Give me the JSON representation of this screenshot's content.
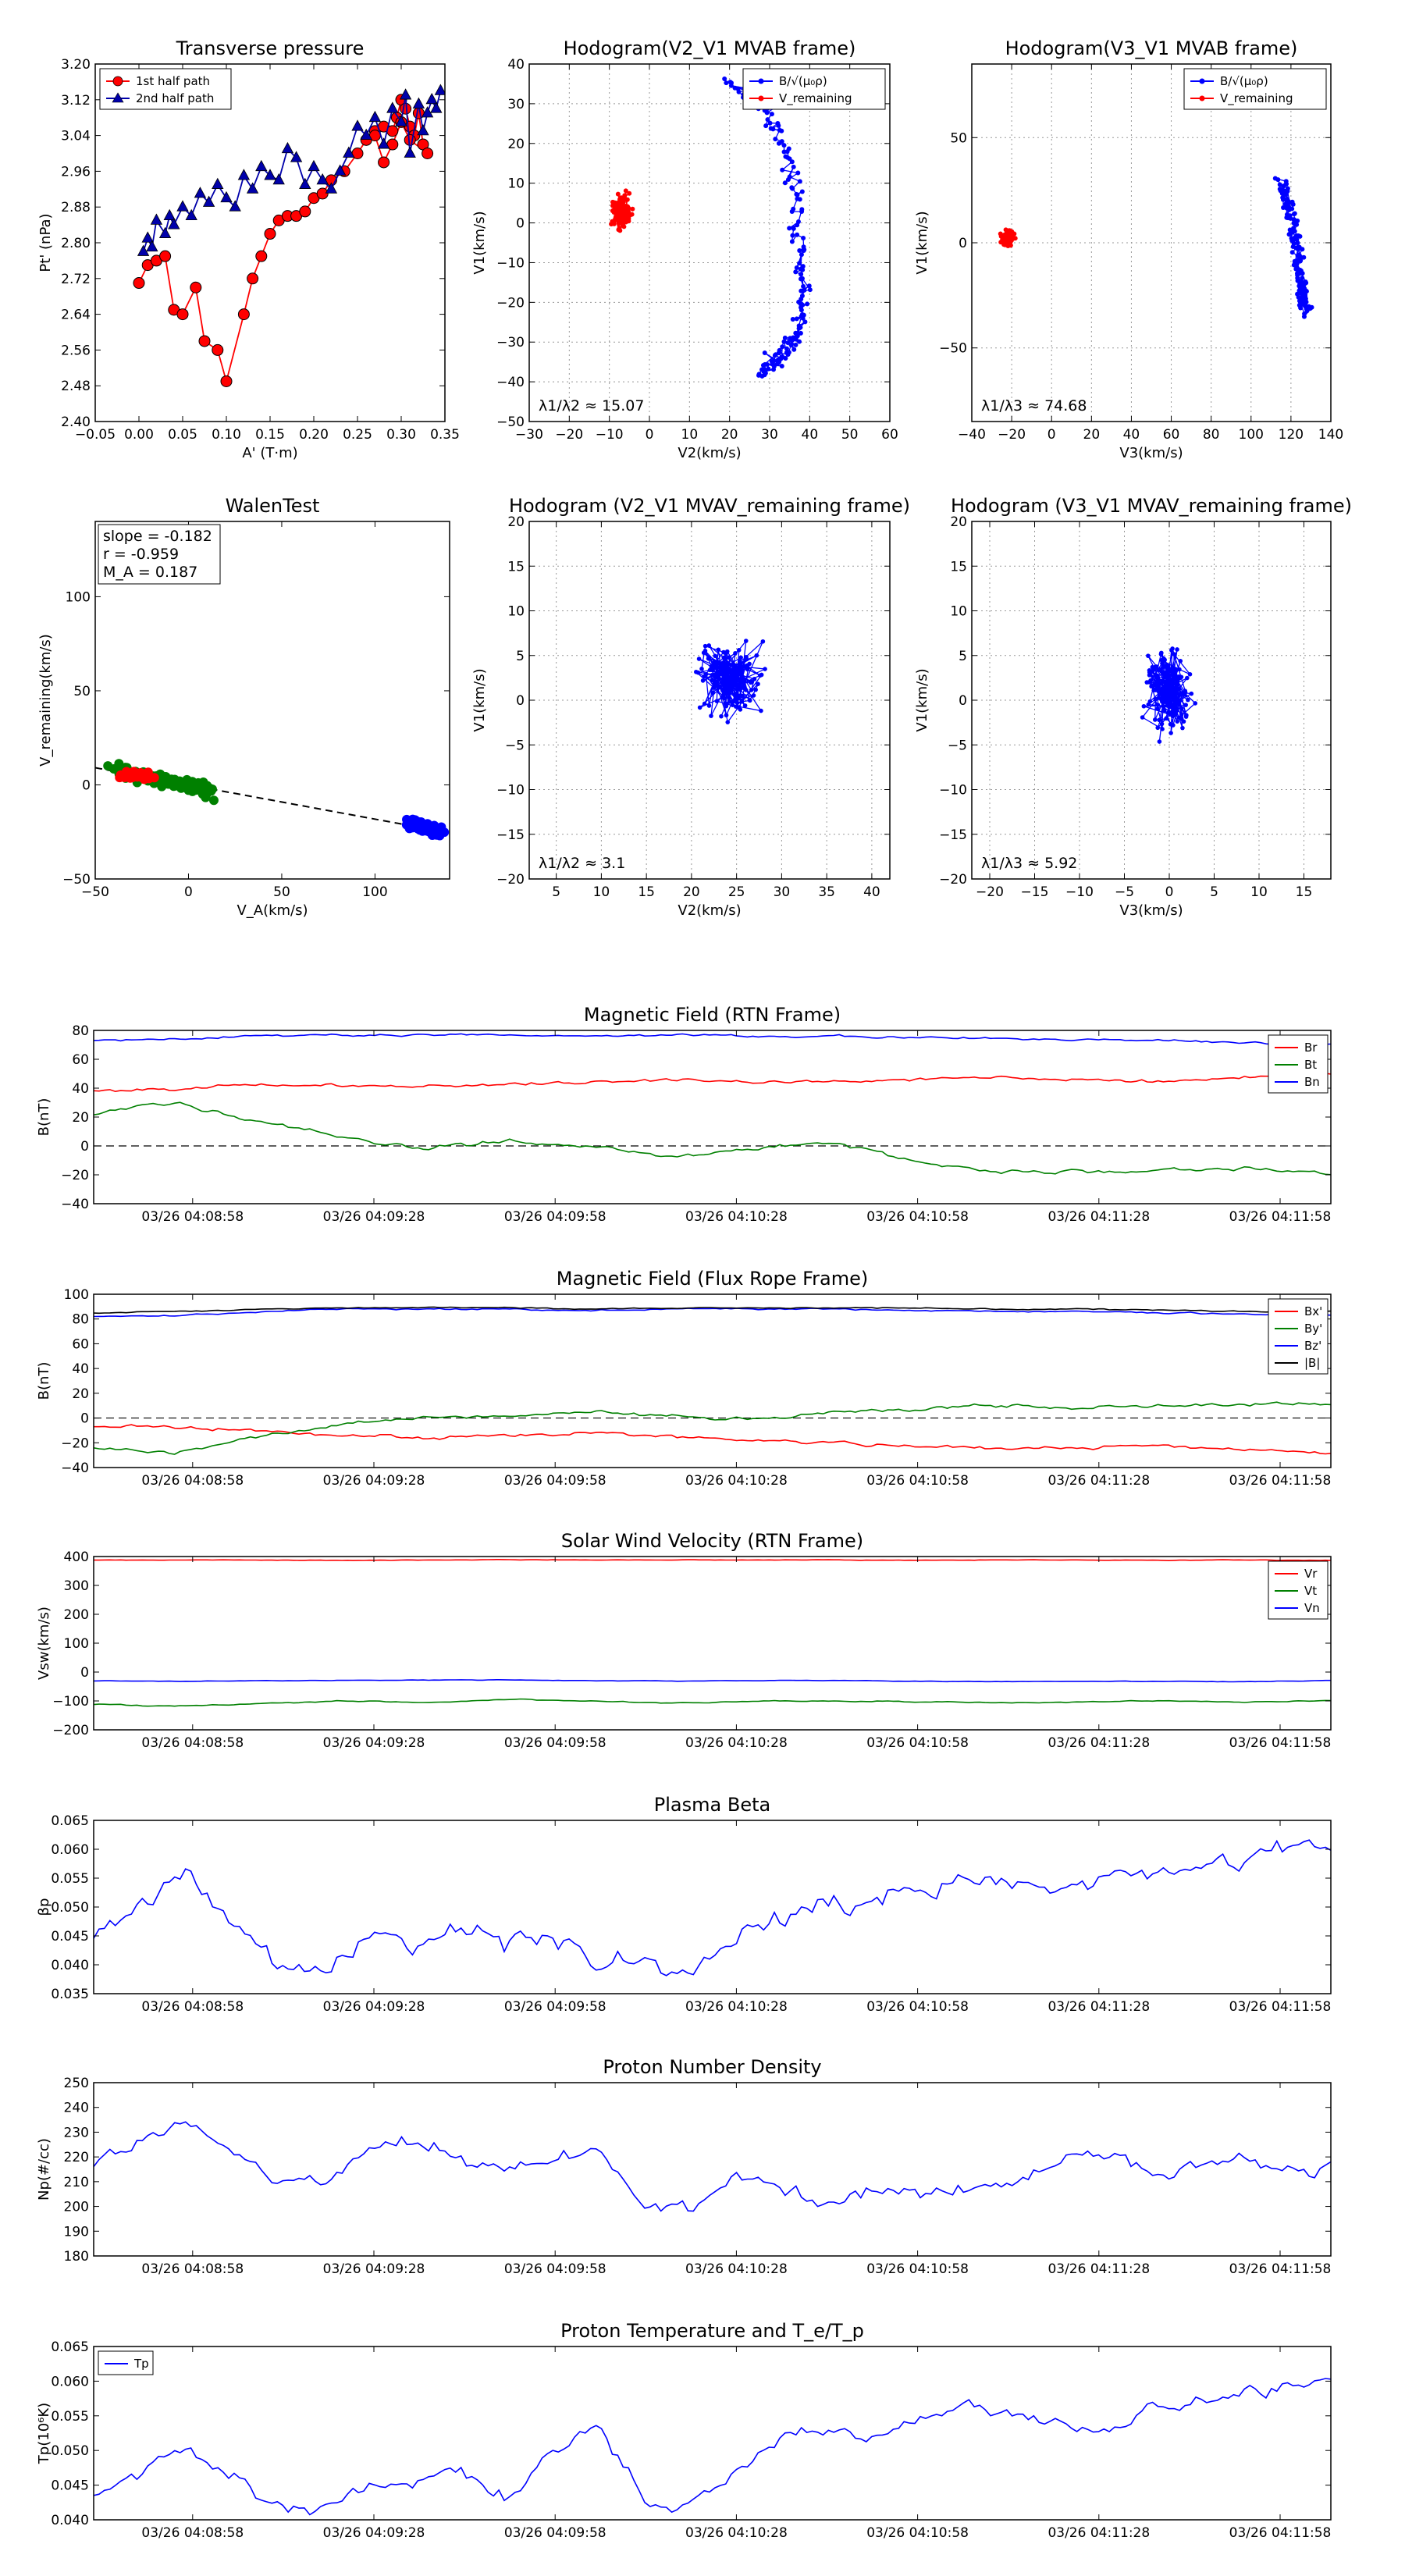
{
  "chart_data": [
    {
      "id": "tp",
      "type": "scatter",
      "title": "Transverse pressure",
      "xlabel": "A' (T·m)",
      "ylabel": "Pt' (nPa)",
      "xlim": [
        -0.05,
        0.35
      ],
      "ylim": [
        2.4,
        3.2
      ],
      "xticks": [
        "−0.05",
        "0.00",
        "0.05",
        "0.10",
        "0.15",
        "0.20",
        "0.25",
        "0.30",
        "0.35"
      ],
      "yticks": [
        "2.40",
        "2.48",
        "2.56",
        "2.64",
        "2.72",
        "2.80",
        "2.88",
        "2.96",
        "3.04",
        "3.12",
        "3.20"
      ],
      "legend": {
        "position": "top-left",
        "entries": [
          "1st half path",
          "2nd half path"
        ]
      },
      "series": [
        {
          "name": "1st half path",
          "color": "#ff0000",
          "marker": "circle",
          "x": [
            0.0,
            0.01,
            0.02,
            0.03,
            0.04,
            0.05,
            0.065,
            0.075,
            0.09,
            0.1,
            0.12,
            0.13,
            0.14,
            0.15,
            0.16,
            0.17,
            0.18,
            0.19,
            0.2,
            0.21,
            0.22,
            0.235,
            0.25,
            0.26,
            0.27,
            0.28,
            0.29,
            0.295,
            0.3,
            0.305,
            0.31,
            0.315,
            0.32,
            0.325,
            0.33,
            0.31,
            0.3,
            0.29,
            0.28,
            0.27
          ],
          "y": [
            2.71,
            2.75,
            2.76,
            2.77,
            2.65,
            2.64,
            2.7,
            2.58,
            2.56,
            2.49,
            2.64,
            2.72,
            2.77,
            2.82,
            2.85,
            2.86,
            2.86,
            2.87,
            2.9,
            2.91,
            2.94,
            2.96,
            3.0,
            3.03,
            3.05,
            3.06,
            3.05,
            3.08,
            3.12,
            3.1,
            3.06,
            3.04,
            3.09,
            3.02,
            3.0,
            3.03,
            3.07,
            3.02,
            2.98,
            3.04
          ]
        },
        {
          "name": "2nd half path",
          "color": "#0000aa",
          "marker": "triangle",
          "x": [
            0.005,
            0.01,
            0.015,
            0.02,
            0.03,
            0.035,
            0.04,
            0.05,
            0.06,
            0.07,
            0.08,
            0.09,
            0.1,
            0.11,
            0.12,
            0.13,
            0.14,
            0.15,
            0.16,
            0.17,
            0.18,
            0.19,
            0.2,
            0.21,
            0.22,
            0.23,
            0.24,
            0.25,
            0.26,
            0.27,
            0.28,
            0.29,
            0.3,
            0.305,
            0.31,
            0.32,
            0.325,
            0.33,
            0.335,
            0.34,
            0.345
          ],
          "y": [
            2.78,
            2.81,
            2.79,
            2.85,
            2.82,
            2.86,
            2.84,
            2.88,
            2.86,
            2.91,
            2.89,
            2.93,
            2.9,
            2.88,
            2.95,
            2.92,
            2.97,
            2.95,
            2.94,
            3.01,
            2.99,
            2.93,
            2.97,
            2.94,
            2.92,
            2.96,
            3.0,
            3.06,
            3.04,
            3.08,
            3.02,
            3.1,
            3.07,
            3.13,
            3.0,
            3.11,
            3.05,
            3.09,
            3.12,
            3.1,
            3.14
          ]
        }
      ]
    },
    {
      "id": "h1",
      "type": "scatter",
      "title": "Hodogram(V2_V1 MVAB frame)",
      "xlabel": "V2(km/s)",
      "ylabel": "V1(km/s)",
      "xlim": [
        -30,
        60
      ],
      "ylim": [
        -50,
        40
      ],
      "xticks": [
        "−30",
        "−20",
        "−10",
        "0",
        "10",
        "20",
        "30",
        "40",
        "50",
        "60"
      ],
      "yticks": [
        "−50",
        "−40",
        "−30",
        "−20",
        "−10",
        "0",
        "10",
        "20",
        "30",
        "40"
      ],
      "legend": {
        "position": "top-right",
        "entries": [
          "B/√(μ₀ρ)",
          "V_remaining"
        ]
      },
      "annotation": "λ1/λ2 ≈ 15.07",
      "clouds": [
        {
          "name": "B",
          "color": "#0000ff",
          "cx": [
            20,
            30,
            36,
            38,
            38,
            33,
            28
          ],
          "cy": [
            36,
            28,
            10,
            -12,
            -26,
            -33,
            -38
          ],
          "spread": [
            3,
            3
          ]
        },
        {
          "name": "V",
          "color": "#ff0000",
          "cx": [
            -7
          ],
          "cy": [
            3
          ],
          "spread": [
            3.5,
            6
          ]
        }
      ]
    },
    {
      "id": "h2",
      "type": "scatter",
      "title": "Hodogram(V3_V1 MVAB frame)",
      "xlabel": "V3(km/s)",
      "ylabel": "V1(km/s)",
      "xlim": [
        -40,
        140
      ],
      "ylim": [
        -85,
        85
      ],
      "xticks": [
        "−40",
        "−20",
        "0",
        "20",
        "40",
        "60",
        "80",
        "100",
        "120",
        "140"
      ],
      "yticks": [
        "−50",
        "0",
        "50"
      ],
      "legend": {
        "position": "top-right",
        "entries": [
          "B/√(μ₀ρ)",
          "V_remaining"
        ]
      },
      "annotation": "λ1/λ3 ≈ 74.68",
      "clouds": [
        {
          "name": "B",
          "color": "#0000ff",
          "cx": [
            115,
            122,
            125,
            127
          ],
          "cy": [
            30,
            5,
            -20,
            -32
          ],
          "spread": [
            4,
            5
          ]
        },
        {
          "name": "V",
          "color": "#ff0000",
          "cx": [
            -22
          ],
          "cy": [
            2
          ],
          "spread": [
            4,
            5
          ]
        }
      ]
    },
    {
      "id": "walen",
      "type": "scatter",
      "title": "WalenTest",
      "xlabel": "V_A(km/s)",
      "ylabel": "V_remaining(km/s)",
      "xlim": [
        -50,
        140
      ],
      "ylim": [
        -50,
        140
      ],
      "xticks": [
        "−50",
        "0",
        "50",
        "100"
      ],
      "yticks": [
        "−50",
        "0",
        "50",
        "100"
      ],
      "text": [
        "slope = -0.182",
        "r = -0.959",
        "M_A = 0.187"
      ],
      "fit_line": {
        "x": [
          -50,
          140
        ],
        "slope": -0.182
      },
      "clouds": [
        {
          "name": "green",
          "color": "#008000",
          "cx": [
            -40,
            -20,
            0,
            12
          ],
          "cy": [
            8,
            4,
            0,
            -4
          ],
          "spread": [
            6,
            5
          ]
        },
        {
          "name": "red",
          "color": "#ff0000",
          "cx": [
            -35,
            -22
          ],
          "cy": [
            6,
            4
          ],
          "spread": [
            6,
            3
          ]
        },
        {
          "name": "blue",
          "color": "#0000ff",
          "cx": [
            118,
            128,
            134
          ],
          "cy": [
            -20,
            -23,
            -25
          ],
          "spread": [
            5,
            4
          ]
        }
      ]
    },
    {
      "id": "h3",
      "type": "line",
      "title": "Hodogram (V2_V1 MVAV_remaining frame)",
      "xlabel": "V2(km/s)",
      "ylabel": "V1(km/s)",
      "xlim": [
        2,
        42
      ],
      "ylim": [
        -20,
        20
      ],
      "xticks": [
        "5",
        "10",
        "15",
        "20",
        "25",
        "30",
        "35",
        "40"
      ],
      "yticks": [
        "−20",
        "−15",
        "−10",
        "−5",
        "0",
        "5",
        "10",
        "15",
        "20"
      ],
      "annotation": "λ1/λ2 ≈ 3.1",
      "center": [
        24,
        2
      ],
      "spread": [
        4,
        6
      ]
    },
    {
      "id": "h4",
      "type": "line",
      "title": "Hodogram (V3_V1 MVAV_remaining frame)",
      "xlabel": "V3(km/s)",
      "ylabel": "V1(km/s)",
      "xlim": [
        -22,
        18
      ],
      "ylim": [
        -20,
        20
      ],
      "xticks": [
        "−20",
        "−15",
        "−10",
        "−5",
        "0",
        "5",
        "10",
        "15"
      ],
      "yticks": [
        "−20",
        "−15",
        "−10",
        "−5",
        "0",
        "5",
        "10",
        "15",
        "20"
      ],
      "annotation": "λ1/λ3 ≈ 5.92",
      "center": [
        0,
        1
      ],
      "spread": [
        3,
        6
      ]
    },
    {
      "id": "bfield",
      "type": "line",
      "title": "Magnetic Field (RTN Frame)",
      "ylabel": "B(nT)",
      "ylim": [
        -40,
        80
      ],
      "yticks": [
        "−40",
        "−20",
        "0",
        "20",
        "40",
        "60",
        "80"
      ],
      "xticks": [
        "03/26 04:08:58",
        "03/26 04:09:28",
        "03/26 04:09:58",
        "03/26 04:10:28",
        "03/26 04:10:58",
        "03/26 04:11:28",
        "03/26 04:11:58"
      ],
      "zero_line": true,
      "legend": {
        "position": "top-right",
        "entries": [
          "Br",
          "Bt",
          "Bn"
        ]
      },
      "series": [
        {
          "name": "Br",
          "color": "#ff0000",
          "keys": [
            38,
            40,
            42,
            42,
            41,
            43,
            44,
            46,
            44,
            45,
            46,
            48,
            46,
            44,
            48,
            50
          ],
          "noise": 1.5
        },
        {
          "name": "Bt",
          "color": "#008000",
          "keys": [
            22,
            30,
            18,
            5,
            -2,
            4,
            0,
            -8,
            -2,
            3,
            -12,
            -18,
            -18,
            -16,
            -15,
            -20
          ],
          "noise": 2
        },
        {
          "name": "Bn",
          "color": "#0000ff",
          "keys": [
            73,
            74,
            76,
            77,
            77,
            77,
            76,
            77,
            76,
            76,
            75,
            74,
            74,
            73,
            71,
            70
          ],
          "noise": 1
        }
      ]
    },
    {
      "id": "bflux",
      "type": "line",
      "title": "Magnetic Field (Flux Rope Frame)",
      "ylabel": "B(nT)",
      "ylim": [
        -40,
        100
      ],
      "yticks": [
        "−40",
        "−20",
        "0",
        "20",
        "40",
        "60",
        "80",
        "100"
      ],
      "xticks": [
        "03/26 04:08:58",
        "03/26 04:09:28",
        "03/26 04:09:58",
        "03/26 04:10:28",
        "03/26 04:10:58",
        "03/26 04:11:28",
        "03/26 04:11:58"
      ],
      "zero_line": true,
      "legend": {
        "position": "top-right",
        "entries": [
          "Bx'",
          "By'",
          "Bz'",
          "|B|"
        ]
      },
      "series": [
        {
          "name": "Bx'",
          "color": "#ff0000",
          "keys": [
            -6,
            -8,
            -10,
            -14,
            -16,
            -14,
            -12,
            -15,
            -18,
            -20,
            -22,
            -25,
            -24,
            -22,
            -26,
            -28
          ],
          "noise": 2
        },
        {
          "name": "By'",
          "color": "#008000",
          "keys": [
            -25,
            -28,
            -15,
            -5,
            0,
            2,
            5,
            2,
            -2,
            5,
            8,
            10,
            8,
            10,
            12,
            12
          ],
          "noise": 2
        },
        {
          "name": "Bz'",
          "color": "#0000ff",
          "keys": [
            82,
            83,
            86,
            88,
            88,
            88,
            87,
            88,
            88,
            88,
            87,
            86,
            86,
            85,
            84,
            83
          ],
          "noise": 0.8
        },
        {
          "name": "|B|",
          "color": "#000000",
          "keys": [
            85,
            86,
            88,
            89,
            89,
            89,
            88,
            89,
            89,
            89,
            89,
            88,
            88,
            87,
            86,
            86
          ],
          "noise": 0.6
        }
      ]
    },
    {
      "id": "vsw",
      "type": "line",
      "title": "Solar Wind Velocity (RTN Frame)",
      "ylabel": "Vsw(km/s)",
      "ylim": [
        -200,
        400
      ],
      "yticks": [
        "−200",
        "−100",
        "0",
        "100",
        "200",
        "300",
        "400"
      ],
      "xticks": [
        "03/26 04:08:58",
        "03/26 04:09:28",
        "03/26 04:09:58",
        "03/26 04:10:28",
        "03/26 04:10:58",
        "03/26 04:11:28",
        "03/26 04:11:58"
      ],
      "legend": {
        "position": "top-right",
        "entries": [
          "Vr",
          "Vt",
          "Vn"
        ]
      },
      "series": [
        {
          "name": "Vr",
          "color": "#ff0000",
          "keys": [
            388,
            388,
            388,
            387,
            388,
            389,
            388,
            388,
            388,
            388,
            387,
            388,
            388,
            387,
            388,
            387
          ],
          "noise": 1
        },
        {
          "name": "Vt",
          "color": "#008000",
          "keys": [
            -112,
            -118,
            -110,
            -100,
            -105,
            -95,
            -100,
            -108,
            -102,
            -100,
            -103,
            -106,
            -104,
            -100,
            -104,
            -100
          ],
          "noise": 2.5
        },
        {
          "name": "Vn",
          "color": "#0000ff",
          "keys": [
            -30,
            -32,
            -30,
            -29,
            -28,
            -27,
            -30,
            -31,
            -30,
            -29,
            -32,
            -33,
            -32,
            -32,
            -33,
            -30
          ],
          "noise": 1.2
        }
      ]
    },
    {
      "id": "beta",
      "type": "line",
      "title": "Plasma Beta",
      "ylabel": "βp",
      "ylim": [
        0.035,
        0.065
      ],
      "yticks": [
        "0.035",
        "0.040",
        "0.045",
        "0.050",
        "0.055",
        "0.060",
        "0.065"
      ],
      "xticks": [
        "03/26 04:08:58",
        "03/26 04:09:28",
        "03/26 04:09:58",
        "03/26 04:10:28",
        "03/26 04:10:58",
        "03/26 04:11:28",
        "03/26 04:11:58"
      ],
      "series": [
        {
          "name": "beta",
          "color": "#0000ff",
          "keys": [
            0.044,
            0.05,
            0.057,
            0.047,
            0.039,
            0.038,
            0.046,
            0.045,
            0.047,
            0.044,
            0.046,
            0.04,
            0.041,
            0.038,
            0.044,
            0.049,
            0.05,
            0.051,
            0.052,
            0.054,
            0.055,
            0.054,
            0.056,
            0.057,
            0.058,
            0.058,
            0.06,
            0.059
          ],
          "noise": 0.0025
        }
      ]
    },
    {
      "id": "np",
      "type": "line",
      "title": "Proton Number Density",
      "ylabel": "Np(#/cc)",
      "ylim": [
        180,
        250
      ],
      "yticks": [
        "180",
        "190",
        "200",
        "210",
        "220",
        "230",
        "240",
        "250"
      ],
      "xticks": [
        "03/26 04:08:58",
        "03/26 04:09:28",
        "03/26 04:09:58",
        "03/26 04:10:28",
        "03/26 04:10:58",
        "03/26 04:11:28",
        "03/26 04:11:58"
      ],
      "series": [
        {
          "name": "Np",
          "color": "#0000ff",
          "keys": [
            215,
            228,
            236,
            222,
            211,
            210,
            222,
            226,
            220,
            216,
            218,
            224,
            200,
            198,
            212,
            206,
            200,
            208,
            205,
            206,
            210,
            218,
            222,
            215,
            216,
            218,
            215,
            216
          ],
          "noise": 4
        }
      ]
    },
    {
      "id": "tp2",
      "type": "line",
      "title": "Proton Temperature and T_e/T_p",
      "ylabel": "Tp(10⁶K)",
      "ylim": [
        0.04,
        0.065
      ],
      "yticks": [
        "0.040",
        "0.045",
        "0.050",
        "0.055",
        "0.060",
        "0.065"
      ],
      "xticks": [
        "03/26 04:08:58",
        "03/26 04:09:28",
        "03/26 04:09:58",
        "03/26 04:10:28",
        "03/26 04:10:58",
        "03/26 04:11:28",
        "03/26 04:11:58"
      ],
      "legend": {
        "position": "top-left",
        "entries": [
          "Tp"
        ]
      },
      "series": [
        {
          "name": "Tp",
          "color": "#0000ff",
          "keys": [
            0.044,
            0.046,
            0.05,
            0.046,
            0.042,
            0.041,
            0.045,
            0.046,
            0.047,
            0.043,
            0.05,
            0.054,
            0.043,
            0.042,
            0.047,
            0.052,
            0.053,
            0.052,
            0.054,
            0.056,
            0.055,
            0.054,
            0.052,
            0.056,
            0.057,
            0.058,
            0.06,
            0.06
          ],
          "noise": 0.0013
        }
      ]
    }
  ]
}
